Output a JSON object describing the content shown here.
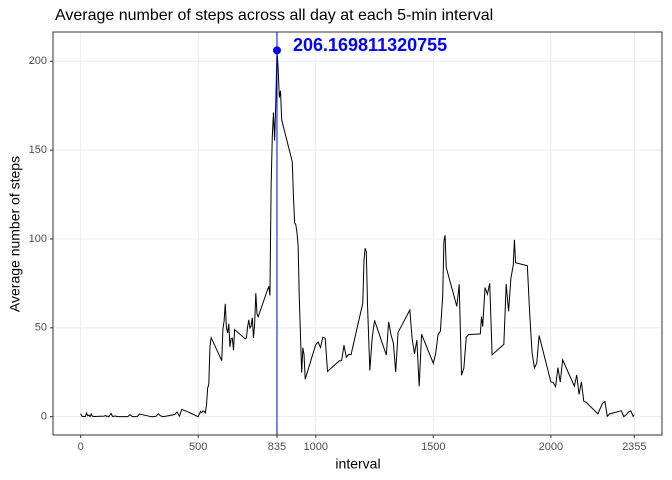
{
  "chart_data": {
    "type": "line",
    "title": "Average number of steps  across all day at each 5-min interval",
    "x_label": "interval",
    "y_label": "Average number of steps",
    "x": [
      0,
      5,
      10,
      15,
      20,
      25,
      30,
      35,
      40,
      45,
      50,
      55,
      100,
      105,
      110,
      115,
      120,
      125,
      130,
      135,
      140,
      145,
      150,
      155,
      200,
      210,
      220,
      230,
      240,
      250,
      300,
      310,
      320,
      330,
      340,
      350,
      400,
      410,
      420,
      430,
      440,
      450,
      500,
      505,
      510,
      515,
      520,
      525,
      530,
      535,
      540,
      545,
      550,
      555,
      600,
      605,
      610,
      615,
      620,
      625,
      630,
      635,
      640,
      645,
      650,
      655,
      700,
      705,
      710,
      715,
      720,
      725,
      730,
      735,
      740,
      745,
      750,
      755,
      800,
      805,
      810,
      815,
      820,
      825,
      830,
      835,
      840,
      845,
      850,
      855,
      900,
      905,
      910,
      915,
      920,
      925,
      930,
      935,
      940,
      945,
      950,
      955,
      1000,
      1010,
      1020,
      1030,
      1040,
      1050,
      1100,
      1110,
      1120,
      1130,
      1140,
      1150,
      1200,
      1205,
      1210,
      1215,
      1220,
      1230,
      1240,
      1250,
      1300,
      1310,
      1320,
      1330,
      1340,
      1350,
      1400,
      1410,
      1420,
      1430,
      1440,
      1450,
      1500,
      1510,
      1520,
      1530,
      1540,
      1545,
      1550,
      1555,
      1600,
      1610,
      1620,
      1630,
      1640,
      1650,
      1700,
      1705,
      1710,
      1720,
      1730,
      1740,
      1750,
      1800,
      1810,
      1820,
      1830,
      1840,
      1845,
      1850,
      1900,
      1910,
      1920,
      1930,
      1940,
      1950,
      2000,
      2010,
      2020,
      2030,
      2040,
      2050,
      2100,
      2110,
      2120,
      2130,
      2140,
      2150,
      2200,
      2210,
      2220,
      2230,
      2240,
      2250,
      2300,
      2310,
      2320,
      2330,
      2340,
      2350,
      2355
    ],
    "values": [
      1.7,
      0.3,
      0.1,
      0.2,
      0.1,
      2.1,
      0.5,
      0.9,
      0,
      1.5,
      0.3,
      0.1,
      0.3,
      0.7,
      0.2,
      0.3,
      0,
      1.1,
      1.8,
      0.2,
      0.2,
      0.4,
      0.3,
      0,
      0,
      1.1,
      0,
      0,
      0,
      1.5,
      0,
      0,
      0.2,
      1.6,
      0.5,
      0,
      1.2,
      2.6,
      0.3,
      4.1,
      3.5,
      3.1,
      0,
      1.6,
      3,
      2.2,
      3.3,
      3,
      2.1,
      6.1,
      16,
      18.3,
      39.5,
      44.5,
      31.5,
      49.3,
      53.8,
      63.5,
      50,
      47.1,
      52.2,
      39.3,
      44,
      44.2,
      37.4,
      49,
      43.8,
      44.4,
      50.5,
      54.5,
      49.9,
      51,
      55.7,
      44.3,
      52.3,
      69.5,
      57.8,
      56.2,
      73.4,
      68.2,
      129.4,
      157.5,
      171.2,
      155.4,
      177.3,
      206.2,
      195.9,
      179.6,
      183.4,
      167,
      143.5,
      124,
      109.1,
      108.1,
      103.7,
      96,
      66.2,
      45.2,
      24.8,
      38.8,
      35,
      21.1,
      40.6,
      42,
      38.9,
      44.7,
      44.2,
      25.5,
      31.4,
      31.6,
      40.2,
      33.4,
      35.1,
      34.9,
      63.9,
      87.7,
      94.8,
      92.8,
      63.4,
      26,
      44.3,
      54.2,
      34.7,
      53.4,
      46.2,
      41.5,
      25.1,
      47.4,
      60,
      43.8,
      35.4,
      43.1,
      17.1,
      46.4,
      30,
      35.5,
      46.2,
      48.1,
      68,
      98.7,
      102.1,
      83.9,
      62.1,
      74.5,
      23.3,
      27.4,
      44.7,
      46.2,
      46.6,
      56.3,
      50.7,
      72.7,
      68.9,
      75.1,
      34.8,
      40.7,
      74.7,
      59.3,
      77.8,
      85.3,
      99.5,
      86.6,
      84.9,
      58,
      36.1,
      27.4,
      30.2,
      45.7,
      19.6,
      19.3,
      16.8,
      27.6,
      19.5,
      32,
      17.2,
      23.5,
      12.5,
      19.6,
      8.7,
      8.1,
      1.6,
      4.6,
      7.5,
      8.5,
      0.2,
      1.6,
      3.3,
      0,
      1,
      2.6,
      3.3,
      0.2,
      1.1
    ],
    "color": "#000000",
    "annotation": {
      "x": 835,
      "y": 206.169811320755,
      "color": "#0000ff"
    },
    "xlim": [
      -117.75,
      2472.75
    ],
    "ylim": [
      -10.31,
      216.48
    ],
    "xticks": [
      0,
      500,
      835,
      1000,
      1500,
      2000,
      2355
    ],
    "yticks": [
      0,
      50,
      100,
      150,
      200
    ],
    "grid": true
  }
}
